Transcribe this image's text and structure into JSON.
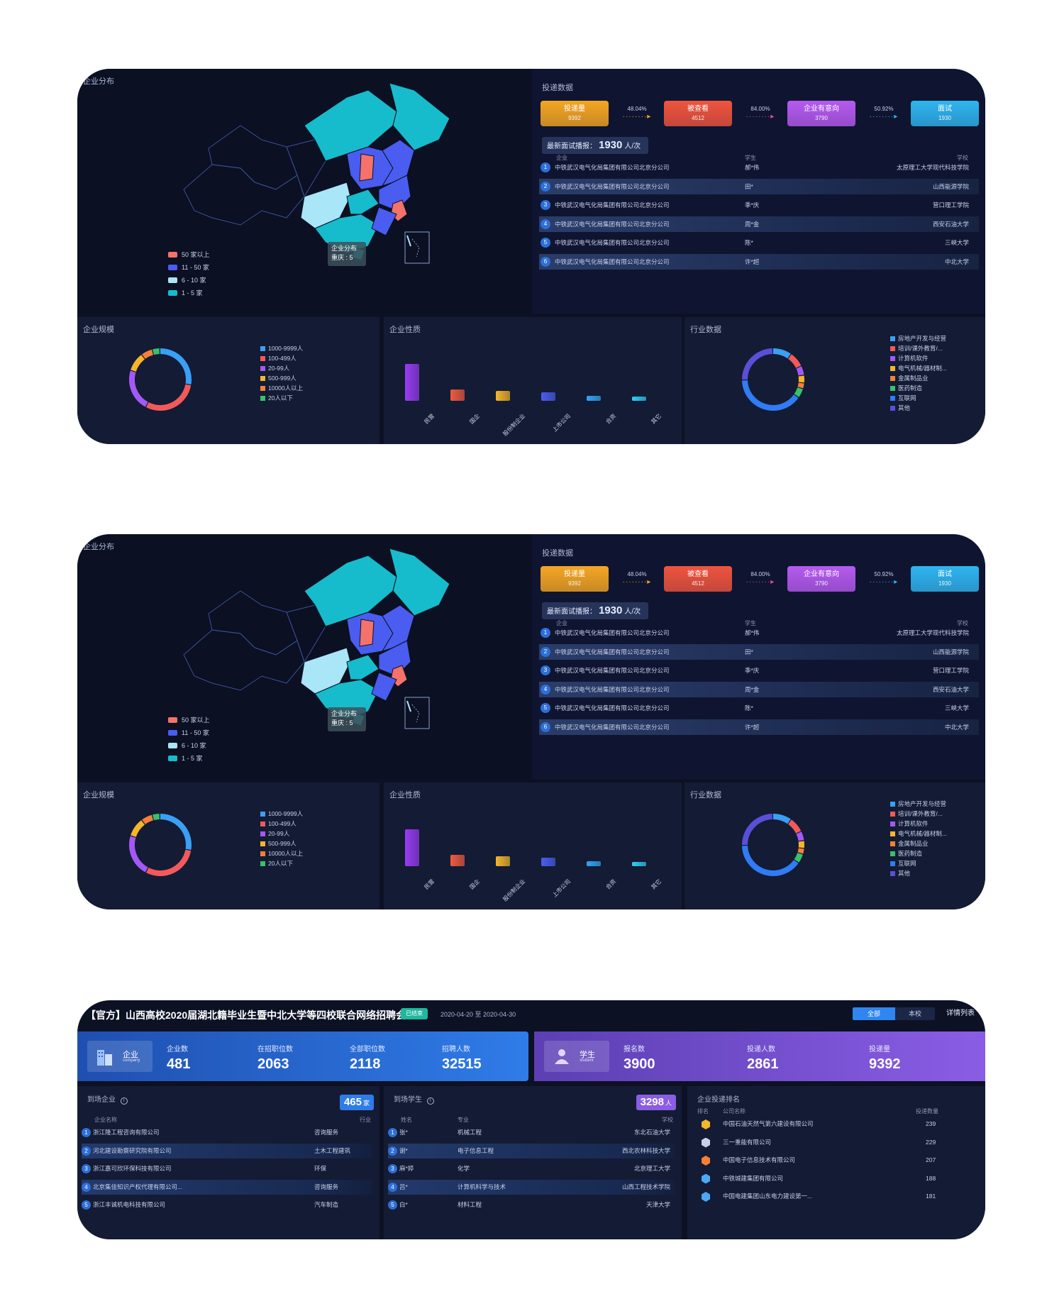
{
  "dashboard": {
    "map": {
      "title": "企业分布",
      "legend": [
        {
          "label": "50 家以上",
          "color": "#f4726a"
        },
        {
          "label": "11 - 50 家",
          "color": "#4a5df0"
        },
        {
          "label": "6 - 10 家",
          "color": "#a9e6f7"
        },
        {
          "label": "1 - 5 家",
          "color": "#16bccb"
        }
      ],
      "tooltip": {
        "title": "企业分布",
        "value": "重庆 : 5"
      }
    },
    "delivery": {
      "title": "投递数据",
      "funnel": [
        {
          "label": "投递量",
          "value": "9392",
          "color": "#f5a623"
        },
        {
          "label": "被查看",
          "value": "4512",
          "color": "#f0543e"
        },
        {
          "label": "企业有意向",
          "value": "3790",
          "color": "#b65af0"
        },
        {
          "label": "面试",
          "value": "1930",
          "color": "#2fb5f0"
        }
      ],
      "rates": [
        "48.04%",
        "84.00%",
        "50.92%"
      ],
      "latest": {
        "label": "最新面试播报：",
        "value": "1930",
        "unit": "人/次"
      },
      "columns": {
        "company": "企业",
        "student": "学生",
        "school": "学校"
      },
      "rows": [
        {
          "rank": "1",
          "company": "中铁武汉电气化局集团有限公司北京分公司",
          "student": "郝*伟",
          "school": "太原理工大学现代科技学院"
        },
        {
          "rank": "2",
          "company": "中铁武汉电气化局集团有限公司北京分公司",
          "student": "田*",
          "school": "山西能源学院"
        },
        {
          "rank": "3",
          "company": "中铁武汉电气化局集团有限公司北京分公司",
          "student": "季*庆",
          "school": "营口理工学院"
        },
        {
          "rank": "4",
          "company": "中铁武汉电气化局集团有限公司北京分公司",
          "student": "周*金",
          "school": "西安石油大学"
        },
        {
          "rank": "5",
          "company": "中铁武汉电气化局集团有限公司北京分公司",
          "student": "陈*",
          "school": "三峡大学"
        },
        {
          "rank": "6",
          "company": "中铁武汉电气化局集团有限公司北京分公司",
          "student": "许*超",
          "school": "中北大学"
        }
      ]
    },
    "scale": {
      "title": "企业规模",
      "items": [
        {
          "label": "1000-9999人",
          "color": "#3aa0f5"
        },
        {
          "label": "100-499人",
          "color": "#f25a5a"
        },
        {
          "label": "20-99人",
          "color": "#a259f5"
        },
        {
          "label": "500-999人",
          "color": "#f5b62a"
        },
        {
          "label": "10000人以上",
          "color": "#f5803a"
        },
        {
          "label": "20人以下",
          "color": "#37c26a"
        }
      ]
    },
    "nature": {
      "title": "企业性质",
      "categories": [
        "民营",
        "国企",
        "股份制企业",
        "上市公司",
        "合资",
        "其它"
      ],
      "colors": [
        "#9a3cf5",
        "#f05a3e",
        "#f5b62a",
        "#4a5df0",
        "#2fa8f5",
        "#2fd0f5"
      ]
    },
    "industry": {
      "title": "行业数据",
      "items": [
        {
          "label": "房地产开发与经营",
          "color": "#3aa0f5"
        },
        {
          "label": "培训/课外教育/...",
          "color": "#f25a5a"
        },
        {
          "label": "计算机软件",
          "color": "#a259f5"
        },
        {
          "label": "电气机械/器材制...",
          "color": "#f5b62a"
        },
        {
          "label": "金属制品业",
          "color": "#f5803a"
        },
        {
          "label": "医药制造",
          "color": "#37c26a"
        },
        {
          "label": "互联网",
          "color": "#2f7cf5"
        },
        {
          "label": "其他",
          "color": "#5a4fd8"
        }
      ]
    }
  },
  "recruit": {
    "title": "【官方】山西高校2020届湖北籍毕业生暨中北大学等四校联合网络招聘会",
    "badge": "已结束",
    "date": "2020-04-20 至 2020-04-30",
    "tabs": [
      "全部",
      "本校"
    ],
    "detail_link": "详情列表",
    "company_block": {
      "label": "企业",
      "sub": "company",
      "stats": [
        {
          "label": "企业数",
          "value": "481"
        },
        {
          "label": "在招职位数",
          "value": "2063"
        },
        {
          "label": "全部职位数",
          "value": "2118"
        },
        {
          "label": "招聘人数",
          "value": "32515"
        }
      ]
    },
    "student_block": {
      "label": "学生",
      "sub": "student",
      "stats": [
        {
          "label": "报名数",
          "value": "3900"
        },
        {
          "label": "投递人数",
          "value": "2861"
        },
        {
          "label": "投递量",
          "value": "9392"
        }
      ]
    },
    "onsite_companies": {
      "title": "到场企业",
      "count": "465",
      "unit": "家",
      "col_name": "企业名称",
      "col_industry": "行业",
      "rows": [
        {
          "rank": "1",
          "name": "浙江隆工程咨询有限公司",
          "industry": "咨询服务"
        },
        {
          "rank": "2",
          "name": "河北建设勘察研究院有限公司",
          "industry": "土木工程建筑"
        },
        {
          "rank": "3",
          "name": "浙江嘉可欣环保科技有限公司",
          "industry": "环保"
        },
        {
          "rank": "4",
          "name": "北京集佳知识产权代理有限公司...",
          "industry": "咨询服务"
        },
        {
          "rank": "5",
          "name": "浙江丰诚机电科技有限公司",
          "industry": "汽车制造"
        }
      ]
    },
    "onsite_students": {
      "title": "到场学生",
      "count": "3298",
      "unit": "人",
      "col_name": "姓名",
      "col_major": "专业",
      "col_school": "学校",
      "rows": [
        {
          "rank": "1",
          "name": "张*",
          "major": "机械工程",
          "school": "东北石油大学"
        },
        {
          "rank": "2",
          "name": "谢*",
          "major": "电子信息工程",
          "school": "西北农林科技大学"
        },
        {
          "rank": "3",
          "name": "麻*婷",
          "major": "化学",
          "school": "北京理工大学"
        },
        {
          "rank": "4",
          "name": "吕*",
          "major": "计算机科学与技术",
          "school": "山西工程技术学院"
        },
        {
          "rank": "5",
          "name": "白*",
          "major": "材料工程",
          "school": "天津大学"
        }
      ]
    },
    "ranking": {
      "title": "企业投递排名",
      "col_rank": "排名",
      "col_name": "公司名称",
      "col_count": "投递数量",
      "rows": [
        {
          "name": "中国石油天然气第六建设有限公司",
          "count": "239",
          "medal": "#f5b62a"
        },
        {
          "name": "三一重能有限公司",
          "count": "229",
          "medal": "#c8d0e8"
        },
        {
          "name": "中国电子信息技术有限公司",
          "count": "207",
          "medal": "#f5803a"
        },
        {
          "name": "中铁城建集团有限公司",
          "count": "188",
          "medal": "#4aa8f5"
        },
        {
          "name": "中国电建集团山东电力建设第一...",
          "count": "181",
          "medal": "#4aa8f5"
        }
      ]
    }
  }
}
